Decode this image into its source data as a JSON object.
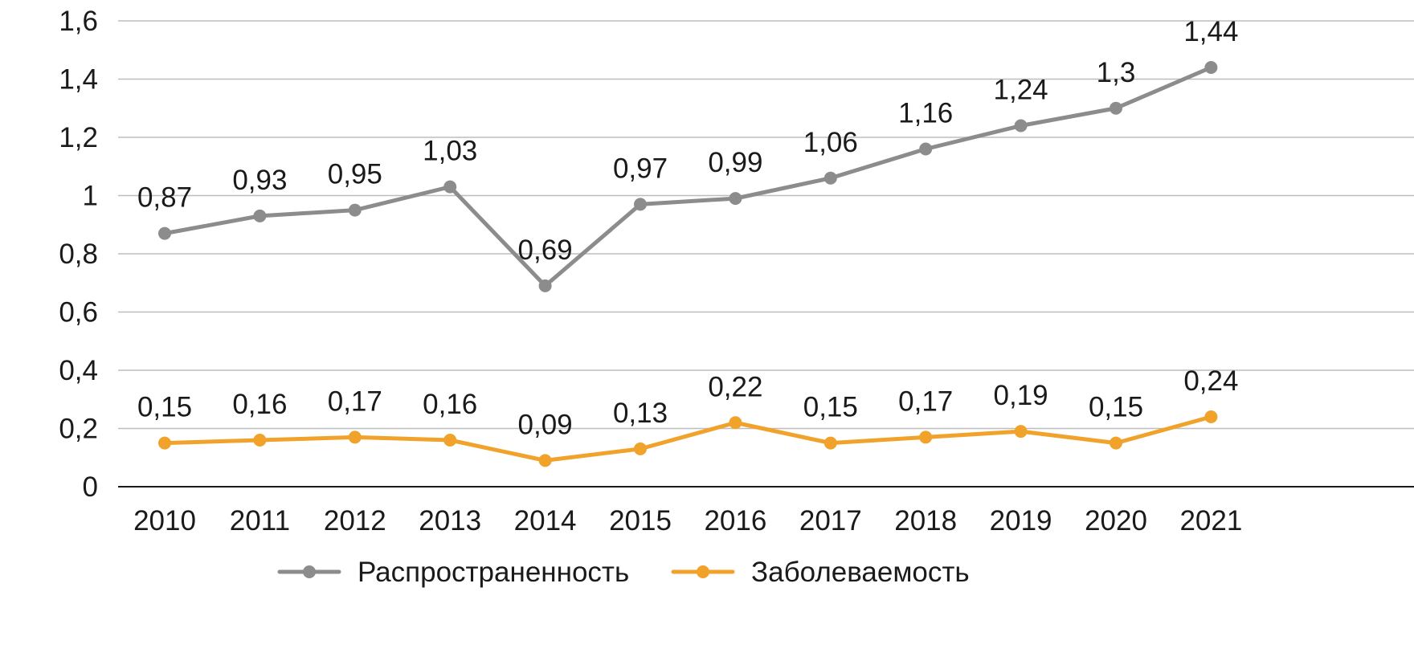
{
  "chart_data": {
    "type": "line",
    "title": "",
    "xlabel": "",
    "ylabel": "",
    "categories": [
      "2010",
      "2011",
      "2012",
      "2013",
      "2014",
      "2015",
      "2016",
      "2017",
      "2018",
      "2019",
      "2020",
      "2021"
    ],
    "ylim": [
      0,
      1.6
    ],
    "yticks": [
      0,
      0.2,
      0.4,
      0.6,
      0.8,
      1,
      1.2,
      1.4,
      1.6
    ],
    "ytick_labels": [
      "0",
      "0,2",
      "0,4",
      "0,6",
      "0,8",
      "1",
      "1,2",
      "1,4",
      "1,6"
    ],
    "grid": "horizontal",
    "legend_position": "bottom",
    "series": [
      {
        "name": "Распространенность",
        "color": "#8c8c8c",
        "values": [
          0.87,
          0.93,
          0.95,
          1.03,
          0.69,
          0.97,
          0.99,
          1.06,
          1.16,
          1.24,
          1.3,
          1.44
        ],
        "labels": [
          "0,87",
          "0,93",
          "0,95",
          "1,03",
          "0,69",
          "0,97",
          "0,99",
          "1,06",
          "1,16",
          "1,24",
          "1,3",
          "1,44"
        ]
      },
      {
        "name": "Заболеваемость",
        "color": "#f0a22b",
        "values": [
          0.15,
          0.16,
          0.17,
          0.16,
          0.09,
          0.13,
          0.22,
          0.15,
          0.17,
          0.19,
          0.15,
          0.24
        ],
        "labels": [
          "0,15",
          "0,16",
          "0,17",
          "0,16",
          "0,09",
          "0,13",
          "0,22",
          "0,15",
          "0,17",
          "0,19",
          "0,15",
          "0,24"
        ]
      }
    ]
  }
}
